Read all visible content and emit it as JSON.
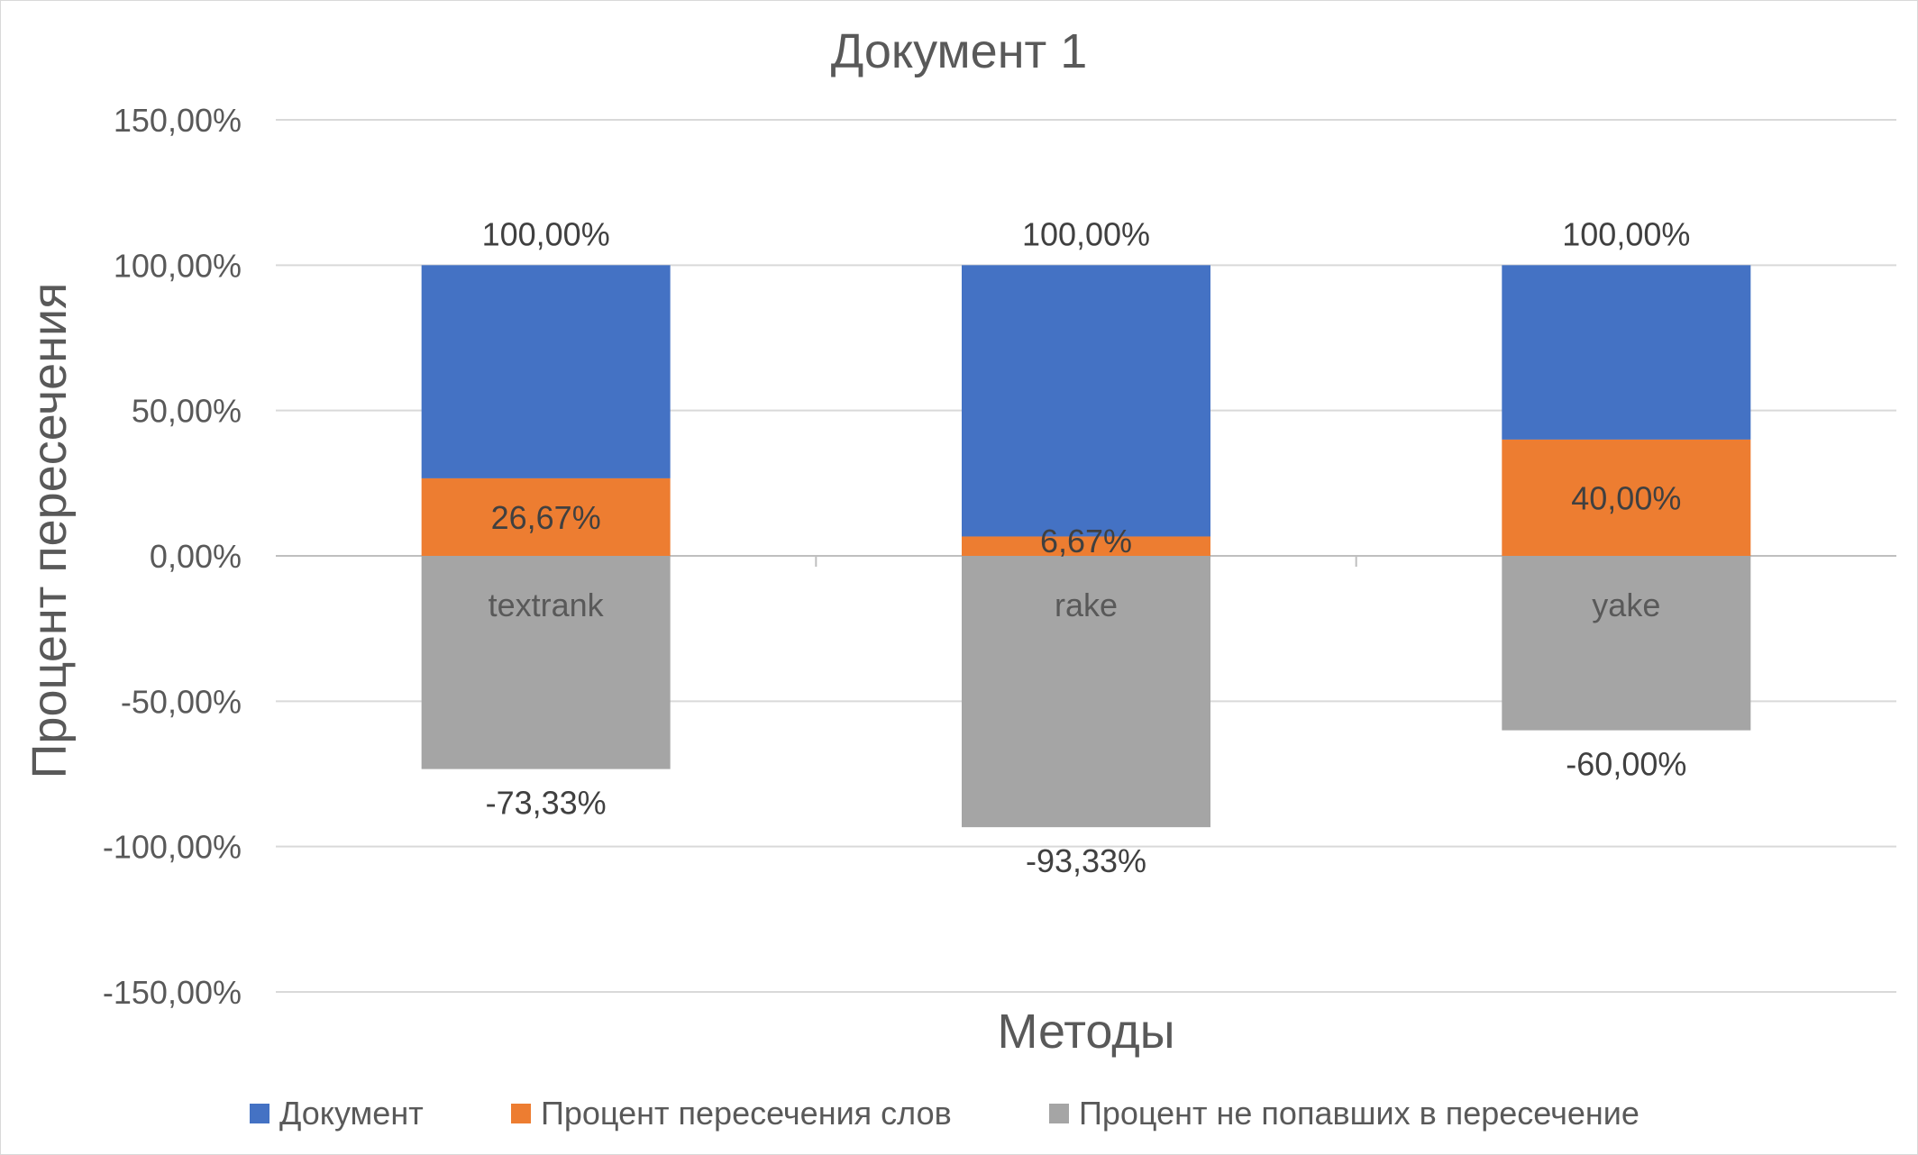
{
  "chart_data": {
    "type": "bar",
    "stacked": true,
    "title": "Документ 1",
    "xlabel": "Методы",
    "ylabel": "Процент пересечения",
    "categories": [
      "textrank",
      "rake",
      "yake"
    ],
    "series": [
      {
        "name": "Документ",
        "color": "#4472C4",
        "values": [
          100,
          100,
          100
        ],
        "labels": [
          "100,00%",
          "100,00%",
          "100,00%"
        ]
      },
      {
        "name": "Процент пересечения слов",
        "color": "#ED7D31",
        "values": [
          26.67,
          6.67,
          40
        ],
        "labels": [
          "26,67%",
          "6,67%",
          "40,00%"
        ]
      },
      {
        "name": "Процент не попавших в пересечение",
        "color": "#A5A5A5",
        "values": [
          -73.33,
          -93.33,
          -60
        ],
        "labels": [
          "-73,33%",
          "-93,33%",
          "-60,00%"
        ]
      }
    ],
    "ylim": [
      -150,
      150
    ],
    "yticks": [
      150,
      100,
      50,
      0,
      -50,
      -100,
      -150
    ],
    "ytick_labels": [
      "150,00%",
      "100,00%",
      "50,00%",
      "0,00%",
      "-50,00%",
      "-100,00%",
      "-150,00%"
    ],
    "grid": true,
    "legend_position": "bottom"
  }
}
